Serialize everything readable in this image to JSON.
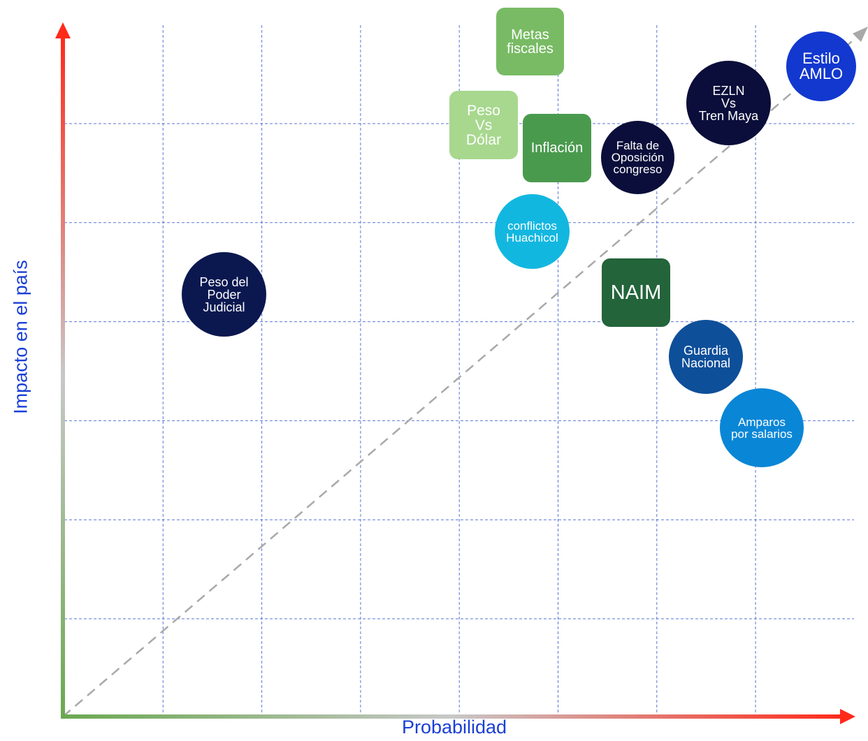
{
  "axes": {
    "x_label": "Probabilidad",
    "y_label": "Impacto en el país",
    "x_gradient": [
      "#6aa84f",
      "#c8c8c8",
      "#ff2a1a"
    ],
    "y_gradient": [
      "#6aa84f",
      "#c8c8c8",
      "#ff2a1a"
    ]
  },
  "grid": {
    "columns": 8,
    "rows": 6
  },
  "items": [
    {
      "id": "metas-fiscales",
      "label": "Metas\nfiscales",
      "shape": "square",
      "color": "#78bb64"
    },
    {
      "id": "peso-vs-dolar",
      "label": "Peso\nVs\nDólar",
      "shape": "square",
      "color": "#a7d88e"
    },
    {
      "id": "inflacion",
      "label": "Inflación",
      "shape": "square",
      "color": "#4a9a4e"
    },
    {
      "id": "falta-oposicion",
      "label": "Falta de\nOposición\ncongreso",
      "shape": "circle",
      "color": "#0b0e3a"
    },
    {
      "id": "ezln-tren-maya",
      "label": "EZLN\nVs\nTren Maya",
      "shape": "circle",
      "color": "#0b0e3a"
    },
    {
      "id": "estilo-amlo",
      "label": "Estilo\nAMLO",
      "shape": "circle",
      "color": "#1238cf"
    },
    {
      "id": "conflictos-huachicol",
      "label": "conflictos\nHuachicol",
      "shape": "circle",
      "color": "#12b7e0"
    },
    {
      "id": "peso-poder-judicial",
      "label": "Peso del\nPoder\nJudicial",
      "shape": "circle",
      "color": "#0b1850"
    },
    {
      "id": "naim",
      "label": "NAIM",
      "shape": "square",
      "color": "#23643a"
    },
    {
      "id": "guardia-nacional",
      "label": "Guardia\nNacional",
      "shape": "circle",
      "color": "#0e4f9a"
    },
    {
      "id": "amparos-salarios",
      "label": "Amparos\npor salarios",
      "shape": "circle",
      "color": "#0a86d6"
    }
  ]
}
